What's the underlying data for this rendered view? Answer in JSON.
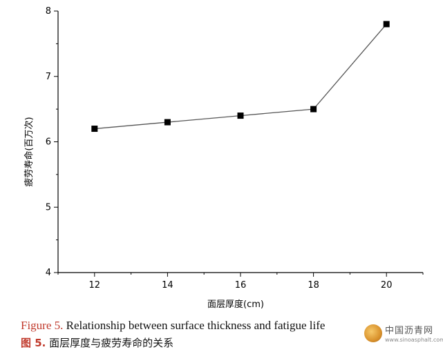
{
  "chart_data": {
    "type": "line",
    "x": [
      12,
      14,
      16,
      18,
      20
    ],
    "series": [
      {
        "values": [
          6.2,
          6.3,
          6.4,
          6.5,
          7.8
        ]
      }
    ],
    "xlabel": "面层厚度(cm)",
    "ylabel": "疲劳寿命(百万次)",
    "xlim": [
      11,
      21
    ],
    "ylim": [
      4,
      8
    ],
    "xticks": [
      "12",
      "14",
      "16",
      "18",
      "20"
    ],
    "yticks": [
      "4",
      "5",
      "6",
      "7",
      "8"
    ],
    "grid": false,
    "marker": "square",
    "colors": {
      "line": "#555555",
      "marker": "#000000",
      "axis": "#000000"
    }
  },
  "caption": {
    "en_fig": "Figure 5.",
    "en_text": " Relationship between surface thickness and fatigue life",
    "zh_fig": "图 5.",
    "zh_text": " 面层厚度与疲劳寿命的关系"
  },
  "watermark": {
    "name": "中国沥青网",
    "url": "www.sinoasphalt.com"
  }
}
